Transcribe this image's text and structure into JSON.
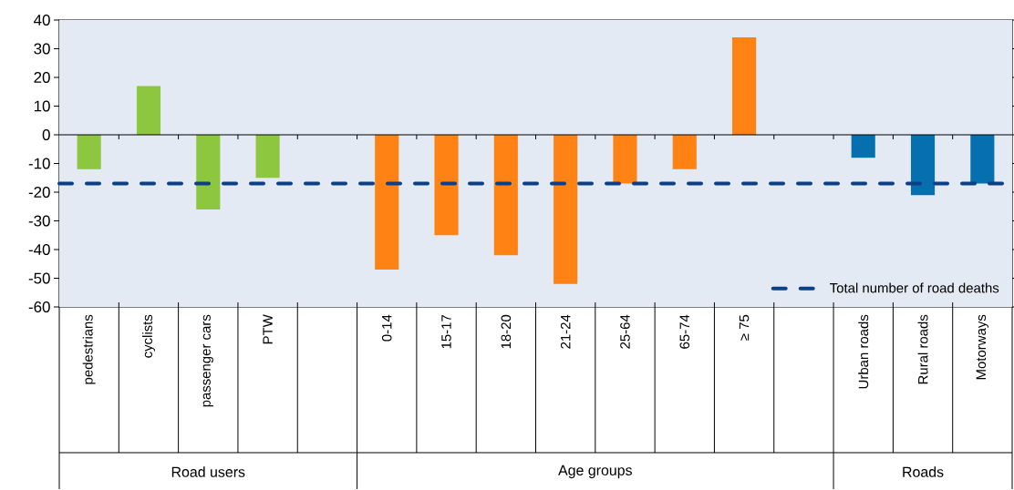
{
  "chart_data": {
    "type": "bar",
    "categories": [
      "pedestrians",
      "cyclists",
      "passenger cars",
      "PTW",
      null,
      "0-14",
      "15-17",
      "18-20",
      "21-24",
      "25-64",
      "65-74",
      "≥ 75",
      null,
      "Urban roads",
      "Rural roads",
      "Motorways"
    ],
    "values": [
      -12,
      17,
      -26,
      -15,
      null,
      -47,
      -35,
      -42,
      -52,
      -17,
      -12,
      34,
      null,
      -8,
      -21,
      -17
    ],
    "colors": [
      "#8dc63f",
      "#8dc63f",
      "#8dc63f",
      "#8dc63f",
      null,
      "#ff8214",
      "#ff8214",
      "#ff8214",
      "#ff8214",
      "#ff8214",
      "#ff8214",
      "#ff8214",
      null,
      "#066fae",
      "#066fae",
      "#066fae"
    ],
    "ylim": [
      -60,
      40
    ],
    "yticks": [
      -60,
      -50,
      -40,
      -30,
      -20,
      -10,
      0,
      10,
      20,
      30,
      40
    ],
    "legend": "bottom right",
    "ref_lines": [
      {
        "axis": "y",
        "value": -17,
        "label": "Total number of road deaths",
        "color": "#0d3f87",
        "line_style": "dashed"
      }
    ],
    "annotations": [
      "Road users",
      "Age groups",
      "Roads"
    ]
  }
}
